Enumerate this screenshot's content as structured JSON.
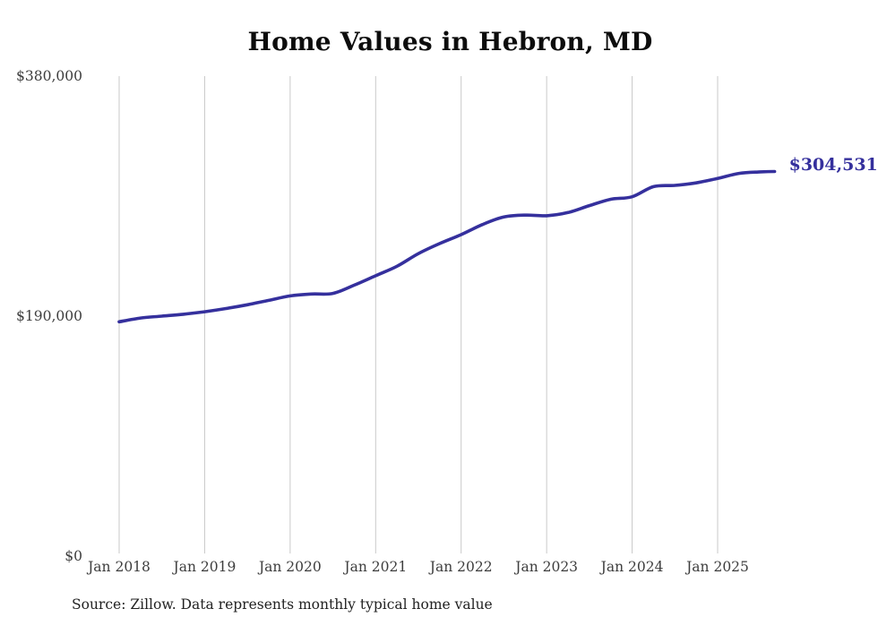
{
  "title": "Home Values in Hebron, MD",
  "source_note": "Source: Zillow. Data represents monthly typical home value",
  "colors": {
    "line": "#35309d",
    "end_label_text": "#35309d",
    "grid": "#c9c9c9",
    "axis_text": "#3d3d3d",
    "title_text": "#0d0d0d",
    "background": "#ffffff"
  },
  "chart_data": {
    "type": "line",
    "title": "Home Values in Hebron, MD",
    "xlabel": "",
    "ylabel": "",
    "grid": "vertical-only",
    "legend": "none",
    "x_axis": {
      "tick_labels": [
        "Jan 2018",
        "Jan 2019",
        "Jan 2020",
        "Jan 2021",
        "Jan 2022",
        "Jan 2023",
        "Jan 2024",
        "Jan 2025"
      ],
      "tick_months": [
        "2018-01",
        "2019-01",
        "2020-01",
        "2021-01",
        "2022-01",
        "2023-01",
        "2024-01",
        "2025-01"
      ]
    },
    "y_axis": {
      "tick_labels": [
        "$380,000",
        "$190,000",
        "$0"
      ],
      "tick_values": [
        380000,
        190000,
        0
      ],
      "range": [
        0,
        380000
      ]
    },
    "series": [
      {
        "name": "Monthly typical home value",
        "points": [
          {
            "month": "2018-01",
            "value": 185500
          },
          {
            "month": "2018-04",
            "value": 188500
          },
          {
            "month": "2018-07",
            "value": 190000
          },
          {
            "month": "2018-10",
            "value": 191500
          },
          {
            "month": "2019-01",
            "value": 193500
          },
          {
            "month": "2019-04",
            "value": 196000
          },
          {
            "month": "2019-07",
            "value": 199000
          },
          {
            "month": "2019-10",
            "value": 202500
          },
          {
            "month": "2020-01",
            "value": 206000
          },
          {
            "month": "2020-04",
            "value": 207500
          },
          {
            "month": "2020-07",
            "value": 208000
          },
          {
            "month": "2020-10",
            "value": 214500
          },
          {
            "month": "2021-01",
            "value": 222000
          },
          {
            "month": "2021-04",
            "value": 229500
          },
          {
            "month": "2021-07",
            "value": 239500
          },
          {
            "month": "2021-10",
            "value": 247500
          },
          {
            "month": "2022-01",
            "value": 254500
          },
          {
            "month": "2022-04",
            "value": 262500
          },
          {
            "month": "2022-07",
            "value": 268500
          },
          {
            "month": "2022-10",
            "value": 270000
          },
          {
            "month": "2023-01",
            "value": 269500
          },
          {
            "month": "2023-04",
            "value": 272000
          },
          {
            "month": "2023-07",
            "value": 277500
          },
          {
            "month": "2023-10",
            "value": 282500
          },
          {
            "month": "2024-01",
            "value": 284500
          },
          {
            "month": "2024-04",
            "value": 292500
          },
          {
            "month": "2024-07",
            "value": 293500
          },
          {
            "month": "2024-10",
            "value": 295500
          },
          {
            "month": "2025-01",
            "value": 299000
          },
          {
            "month": "2025-04",
            "value": 303000
          },
          {
            "month": "2025-07",
            "value": 304200
          },
          {
            "month": "2025-09",
            "value": 304531
          }
        ]
      }
    ],
    "final_point": {
      "month": "2025-09",
      "value": 304531,
      "label": "$304,531"
    }
  }
}
